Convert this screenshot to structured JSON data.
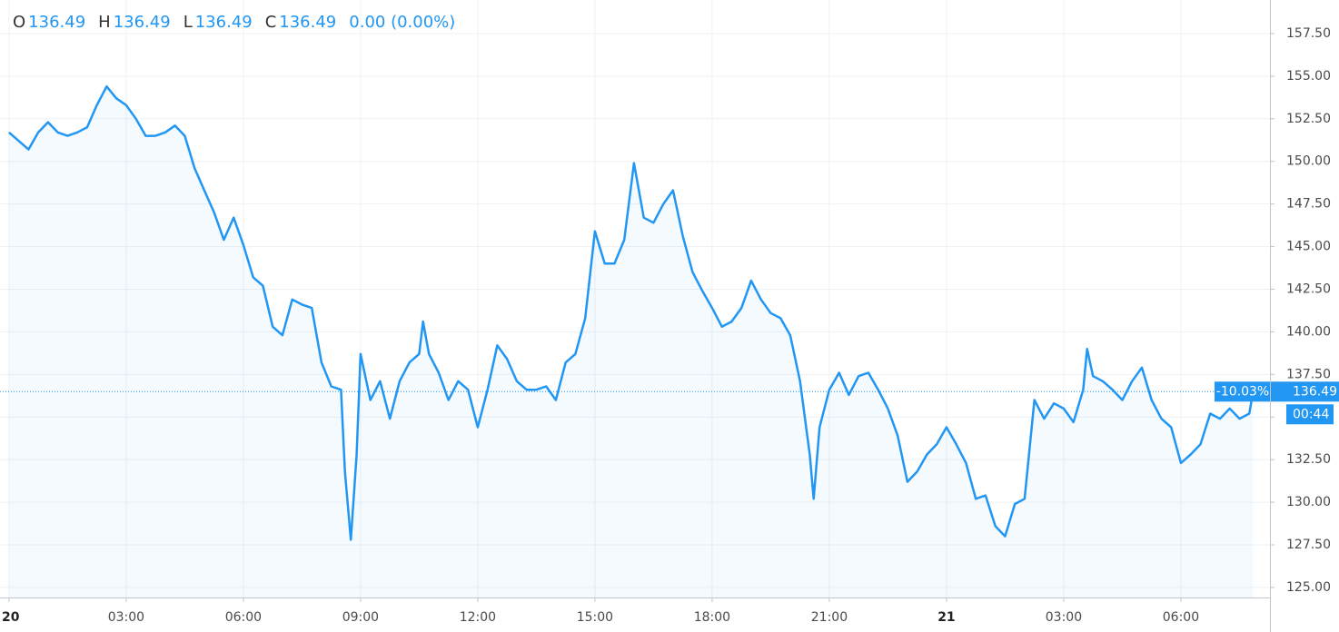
{
  "chart_data": {
    "type": "line",
    "header": {
      "items": [
        {
          "key": "O",
          "value": 136.49
        },
        {
          "key": "H",
          "value": 136.49
        },
        {
          "key": "L",
          "value": 136.49
        },
        {
          "key": "C",
          "value": 136.49
        }
      ],
      "change": "0.00 (0.00%)"
    },
    "x": [
      0,
      0.5,
      0.75,
      1,
      1.25,
      1.5,
      1.75,
      2,
      2.25,
      2.5,
      2.75,
      3,
      3.25,
      3.5,
      3.75,
      4,
      4.25,
      4.5,
      4.75,
      5,
      5.25,
      5.5,
      5.75,
      6,
      6.25,
      6.5,
      6.75,
      7,
      7.25,
      7.5,
      7.75,
      8,
      8.25,
      8.5,
      8.6,
      8.75,
      8.9,
      9,
      9.25,
      9.5,
      9.75,
      10,
      10.25,
      10.5,
      10.6,
      10.75,
      11,
      11.25,
      11.5,
      11.75,
      12,
      12.25,
      12.5,
      12.75,
      13,
      13.25,
      13.5,
      13.75,
      14,
      14.25,
      14.5,
      14.75,
      15,
      15.25,
      15.5,
      15.75,
      16,
      16.25,
      16.5,
      16.75,
      17,
      17.25,
      17.5,
      17.75,
      18,
      18.25,
      18.5,
      18.75,
      19,
      19.25,
      19.5,
      19.75,
      20,
      20.25,
      20.5,
      20.6,
      20.75,
      21,
      21.25,
      21.5,
      21.75,
      22,
      22.25,
      22.5,
      22.75,
      23,
      23.25,
      23.5,
      23.75,
      24,
      24.25,
      24.5,
      24.75,
      25,
      25.25,
      25.5,
      25.75,
      26,
      26.25,
      26.5,
      26.75,
      27,
      27.25,
      27.5,
      27.6,
      27.75,
      28,
      28.25,
      28.5,
      28.75,
      29,
      29.25,
      29.5,
      29.75,
      30,
      30.25,
      30.5,
      30.75,
      31,
      31.25,
      31.5,
      31.75,
      31.85
    ],
    "series": [
      {
        "color": "#2196f3",
        "values": [
          151.7,
          150.7,
          151.7,
          152.3,
          151.7,
          151.5,
          151.7,
          152.0,
          153.3,
          154.4,
          153.7,
          153.3,
          152.5,
          151.5,
          151.5,
          151.7,
          152.1,
          151.5,
          149.6,
          148.3,
          147.0,
          145.4,
          146.7,
          145.1,
          143.2,
          142.7,
          140.3,
          139.8,
          141.9,
          141.6,
          141.4,
          138.2,
          136.8,
          136.6,
          131.8,
          127.8,
          132.8,
          138.7,
          136.0,
          137.1,
          134.9,
          137.1,
          138.2,
          138.7,
          140.6,
          138.7,
          137.6,
          136.0,
          137.1,
          136.6,
          134.4,
          136.6,
          139.2,
          138.4,
          137.1,
          136.6,
          136.6,
          136.8,
          136.0,
          138.2,
          138.7,
          140.8,
          145.9,
          144.0,
          144.0,
          145.4,
          149.9,
          146.7,
          146.4,
          147.5,
          148.3,
          145.6,
          143.5,
          142.4,
          141.4,
          140.3,
          140.6,
          141.4,
          143.0,
          141.9,
          141.1,
          140.8,
          139.8,
          137.1,
          132.8,
          130.2,
          134.4,
          136.6,
          137.6,
          136.3,
          137.4,
          137.6,
          136.6,
          135.5,
          133.9,
          131.2,
          131.8,
          132.8,
          133.4,
          134.4,
          133.4,
          132.3,
          130.2,
          130.4,
          128.6,
          128.0,
          129.9,
          130.2,
          136.0,
          134.9,
          135.8,
          135.5,
          134.7,
          136.6,
          139.0,
          137.4,
          137.1,
          136.6,
          136.0,
          137.1,
          137.9,
          136.0,
          134.9,
          134.4,
          132.3,
          132.8,
          133.4,
          135.2,
          134.9,
          135.5,
          134.9,
          135.2,
          136.49
        ]
      }
    ],
    "xlim": [
      -0.23,
      32.28
    ],
    "xticks": [
      {
        "value": 0,
        "label": "20"
      },
      {
        "value": 3,
        "label": "03:00"
      },
      {
        "value": 6,
        "label": "06:00"
      },
      {
        "value": 9,
        "label": "09:00"
      },
      {
        "value": 12,
        "label": "12:00"
      },
      {
        "value": 15,
        "label": "15:00"
      },
      {
        "value": 18,
        "label": "18:00"
      },
      {
        "value": 21,
        "label": "21:00"
      },
      {
        "value": 24,
        "label": "21"
      },
      {
        "value": 27,
        "label": "03:00"
      },
      {
        "value": 30,
        "label": "06:00"
      }
    ],
    "ylim": [
      124.41,
      159.47
    ],
    "yticks": [
      {
        "value": 125,
        "label": "125.00"
      },
      {
        "value": 127.5,
        "label": "127.50"
      },
      {
        "value": 130,
        "label": "130.00"
      },
      {
        "value": 132.5,
        "label": "132.50"
      },
      {
        "value": 135,
        "label": "135.00"
      },
      {
        "value": 137.5,
        "label": "137.50"
      },
      {
        "value": 140,
        "label": "140.00"
      },
      {
        "value": 142.5,
        "label": "142.50"
      },
      {
        "value": 145,
        "label": "145.00"
      },
      {
        "value": 147.5,
        "label": "147.50"
      },
      {
        "value": 150,
        "label": "150.00"
      },
      {
        "value": 152.5,
        "label": "152.50"
      },
      {
        "value": 155,
        "label": "155.00"
      },
      {
        "value": 157.5,
        "label": "157.50"
      }
    ],
    "grid": true,
    "last_price": 136.49,
    "last_change": "-10.03%",
    "countdown": "00:44"
  }
}
